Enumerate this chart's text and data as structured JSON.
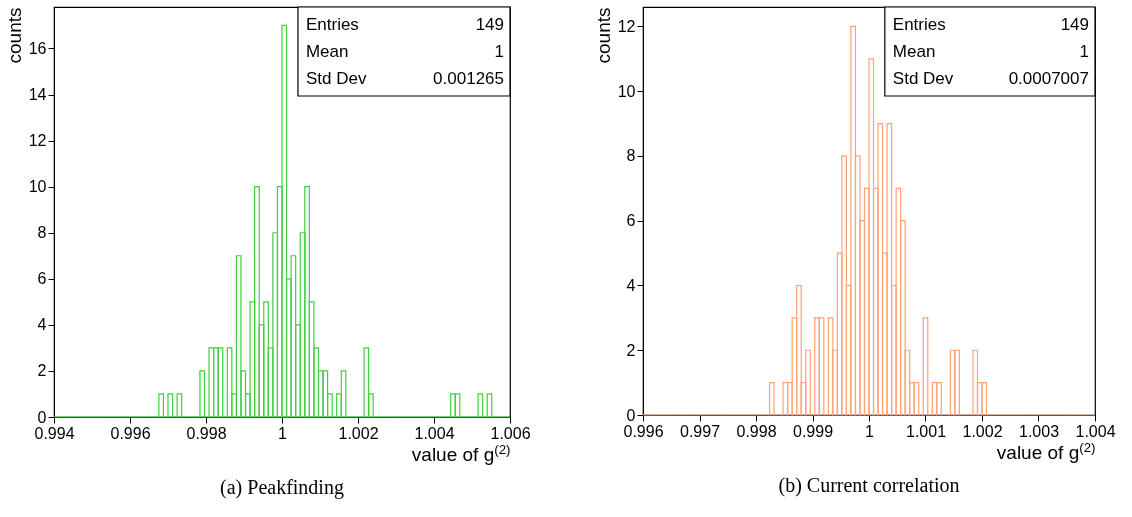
{
  "chart_data": [
    {
      "type": "histogram",
      "title": "(a) Peakfinding",
      "xlabel": "value of g$^{(2)}$",
      "ylabel": "counts",
      "color": "#3fcf3f",
      "bins": [
        0.994,
        0.99412,
        0.99424,
        0.99436,
        0.99448,
        0.9946,
        0.99472,
        0.99484,
        0.99496,
        0.99508,
        0.9952,
        0.99532,
        0.99544,
        0.99556,
        0.99568,
        0.9958,
        0.99592,
        0.99604,
        0.99616,
        0.99628,
        0.9964,
        0.99652,
        0.99664,
        0.99676,
        0.99688,
        0.997,
        0.99712,
        0.99724,
        0.99736,
        0.99748,
        0.9976,
        0.99772,
        0.99784,
        0.99796,
        0.99808,
        0.9982,
        0.99832,
        0.99844,
        0.99856,
        0.99868,
        0.9988,
        0.99892,
        0.99904,
        0.99916,
        0.99928,
        0.9994,
        0.99952,
        0.99964,
        0.99976,
        0.99988,
        1,
        1.00012,
        1.00024,
        1.00036,
        1.00048,
        1.0006,
        1.00072,
        1.00084,
        1.00096,
        1.00108,
        1.0012,
        1.00132,
        1.00144,
        1.00156,
        1.00168,
        1.0018,
        1.00192,
        1.00204,
        1.00216,
        1.00228,
        1.0024,
        1.00252,
        1.00264,
        1.00276,
        1.00288,
        1.003,
        1.00312,
        1.00324,
        1.00336,
        1.00348,
        1.0036,
        1.00372,
        1.00384,
        1.00396,
        1.00408,
        1.0042,
        1.00432,
        1.00444,
        1.00456,
        1.00468,
        1.0048,
        1.00492,
        1.00504,
        1.00516,
        1.00528,
        1.0054,
        1.00552,
        1.00564,
        1.00576,
        1.00588,
        1.006
      ],
      "values": [
        0,
        0,
        0,
        0,
        0,
        0,
        0,
        0,
        0,
        0,
        0,
        0,
        0,
        0,
        0,
        0,
        0,
        0,
        0,
        0,
        0,
        0,
        0,
        1,
        0,
        1,
        0,
        1,
        0,
        0,
        0,
        0,
        2,
        0,
        3,
        3,
        3,
        0,
        3,
        1,
        7,
        2,
        1,
        5,
        10,
        4,
        5,
        3,
        8,
        10,
        17,
        6,
        7,
        4,
        8,
        10,
        5,
        3,
        2,
        2,
        1,
        0,
        1,
        2,
        0,
        0,
        0,
        0,
        3,
        1,
        0,
        0,
        0,
        0,
        0,
        0,
        0,
        0,
        0,
        0,
        0,
        0,
        0,
        0,
        0,
        0,
        0,
        1,
        1,
        0,
        0,
        0,
        0,
        1,
        0,
        1,
        0,
        0,
        0,
        0
      ],
      "xlim": [
        0.994,
        1.006
      ],
      "xticks": [
        0.994,
        0.996,
        0.998,
        1,
        1.002,
        1.004,
        1.006
      ],
      "ylim": [
        0,
        17.8
      ],
      "yticks": [
        0,
        2,
        4,
        6,
        8,
        10,
        12,
        14,
        16
      ],
      "annotations": [
        "Entries",
        "149",
        "Mean",
        "1",
        "Std Dev",
        "0.001265"
      ]
    },
    {
      "type": "histogram",
      "title": "(b) Current correlation",
      "xlabel": "value of g$^{(2)}$",
      "ylabel": "counts",
      "color": "#ffa275",
      "bins": [
        0.996,
        0.99608,
        0.99616,
        0.99624,
        0.99632,
        0.9964,
        0.99648,
        0.99656,
        0.99664,
        0.99672,
        0.9968,
        0.99688,
        0.99696,
        0.99704,
        0.99712,
        0.9972,
        0.99728,
        0.99736,
        0.99744,
        0.99752,
        0.9976,
        0.99768,
        0.99776,
        0.99784,
        0.99792,
        0.998,
        0.99808,
        0.99816,
        0.99824,
        0.99832,
        0.9984,
        0.99848,
        0.99856,
        0.99864,
        0.99872,
        0.9988,
        0.99888,
        0.99896,
        0.99904,
        0.99912,
        0.9992,
        0.99928,
        0.99936,
        0.99944,
        0.99952,
        0.9996,
        0.99968,
        0.99976,
        0.99984,
        0.99992,
        1,
        1.00008,
        1.00016,
        1.00024,
        1.00032,
        1.0004,
        1.00048,
        1.00056,
        1.00064,
        1.00072,
        1.0008,
        1.00088,
        1.00096,
        1.00104,
        1.00112,
        1.0012,
        1.00128,
        1.00136,
        1.00144,
        1.00152,
        1.0016,
        1.00168,
        1.00176,
        1.00184,
        1.00192,
        1.002,
        1.00208,
        1.00216,
        1.00224,
        1.00232,
        1.0024,
        1.00248,
        1.00256,
        1.00264,
        1.00272,
        1.0028,
        1.00288,
        1.00296,
        1.00304,
        1.00312,
        1.0032,
        1.00328,
        1.00336,
        1.00344,
        1.00352,
        1.0036,
        1.00368,
        1.00376,
        1.00384,
        1.00392,
        1.004
      ],
      "values": [
        0,
        0,
        0,
        0,
        0,
        0,
        0,
        0,
        0,
        0,
        0,
        0,
        0,
        0,
        0,
        0,
        0,
        0,
        0,
        0,
        0,
        0,
        0,
        0,
        0,
        0,
        0,
        0,
        1,
        0,
        0,
        1,
        1,
        3,
        4,
        1,
        2,
        0,
        3,
        3,
        0,
        3,
        2,
        5,
        8,
        4,
        12,
        8,
        6,
        7,
        11,
        7,
        9,
        5,
        9,
        4,
        7,
        6,
        2,
        1,
        1,
        0,
        3,
        0,
        1,
        1,
        0,
        0,
        2,
        2,
        0,
        0,
        0,
        2,
        1,
        1,
        0,
        0,
        0,
        0,
        0,
        0,
        0,
        0,
        0,
        0,
        0,
        0,
        0,
        0,
        0,
        0,
        0,
        0,
        0,
        0,
        0,
        0,
        0,
        0
      ],
      "xlim": [
        0.996,
        1.004
      ],
      "xticks": [
        0.996,
        0.997,
        0.998,
        0.999,
        1,
        1.001,
        1.002,
        1.003,
        1.004
      ],
      "ylim": [
        0,
        12.6
      ],
      "yticks": [
        0,
        2,
        4,
        6,
        8,
        10,
        12
      ],
      "annotations": [
        "Entries",
        "149",
        "Mean",
        "1",
        "Std Dev",
        "0.0007007"
      ]
    }
  ]
}
